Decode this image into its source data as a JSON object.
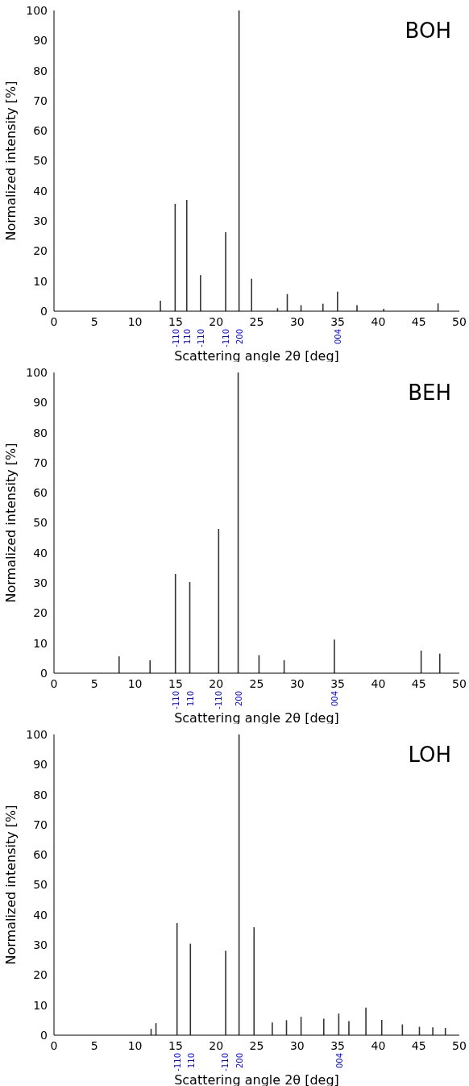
{
  "chart_data": [
    {
      "type": "bar",
      "title": "BOH",
      "xlabel": "Scattering angle 2θ [deg]",
      "ylabel": "Normalized intensity [%]",
      "x": [
        13.15,
        14.97,
        16.4,
        18.1,
        21.2,
        22.85,
        24.4,
        27.6,
        28.8,
        30.5,
        33.2,
        35.0,
        37.4,
        40.7,
        47.4
      ],
      "values": [
        3.5,
        35.7,
        37,
        12,
        26.3,
        100,
        10.8,
        1,
        5.7,
        2,
        2.5,
        6.5,
        2,
        0.8,
        2.6
      ],
      "color": "#333333",
      "xlim": [
        0,
        50
      ],
      "xticks": [
        0,
        5,
        10,
        15,
        20,
        25,
        30,
        35,
        40,
        45,
        50
      ],
      "ylim": [
        0,
        100
      ],
      "yticks": [
        0,
        10,
        20,
        30,
        40,
        50,
        60,
        70,
        80,
        90,
        100
      ],
      "annotations": [
        {
          "text": "-110",
          "x": 14.97,
          "y": 0
        },
        {
          "text": "110",
          "x": 16.4,
          "y": 0
        },
        {
          "text": "-110",
          "x": 18.1,
          "y": 0
        },
        {
          "text": "-110",
          "x": 21.2,
          "y": 0
        },
        {
          "text": "200",
          "x": 22.85,
          "y": 0
        },
        {
          "text": "004",
          "x": 35.0,
          "y": 0
        }
      ]
    },
    {
      "type": "bar",
      "title": "BEH",
      "xlabel": "Scattering angle 2θ [deg]",
      "ylabel": "Normalized intensity [%]",
      "x": [
        8.04,
        11.86,
        14.99,
        16.76,
        20.32,
        22.73,
        25.3,
        28.4,
        34.6,
        45.3,
        47.6
      ],
      "values": [
        5.6,
        4.3,
        33,
        30.3,
        48,
        100,
        6,
        4.3,
        11.2,
        7.5,
        6.5
      ],
      "color": "#333333",
      "xlim": [
        0,
        50
      ],
      "xticks": [
        0,
        5,
        10,
        15,
        20,
        25,
        30,
        35,
        40,
        45,
        50
      ],
      "ylim": [
        0,
        100
      ],
      "yticks": [
        0,
        10,
        20,
        30,
        40,
        50,
        60,
        70,
        80,
        90,
        100
      ],
      "annotations": [
        {
          "text": "-110",
          "x": 14.99,
          "y": 0
        },
        {
          "text": "110",
          "x": 16.76,
          "y": 0
        },
        {
          "text": "-110",
          "x": 20.32,
          "y": 0
        },
        {
          "text": "200",
          "x": 22.73,
          "y": 0
        },
        {
          "text": "004",
          "x": 34.6,
          "y": 0
        }
      ]
    },
    {
      "type": "bar",
      "title": "LOH",
      "xlabel": "Scattering angle 2θ [deg]",
      "ylabel": "Normalized intensity [%]",
      "x": [
        12.0,
        12.6,
        15.2,
        16.85,
        21.2,
        22.85,
        24.7,
        26.95,
        28.7,
        30.5,
        33.3,
        35.15,
        36.4,
        38.5,
        40.45,
        43.0,
        45.1,
        46.75,
        48.3
      ],
      "values": [
        2.1,
        4,
        37.3,
        30.4,
        28.1,
        100,
        35.9,
        4.2,
        5,
        6.1,
        5.5,
        7.2,
        4.7,
        9.2,
        5.1,
        3.6,
        2.8,
        2.6,
        2.4
      ],
      "color": "#333333",
      "xlim": [
        0,
        50
      ],
      "xticks": [
        0,
        5,
        10,
        15,
        20,
        25,
        30,
        35,
        40,
        45,
        50
      ],
      "ylim": [
        0,
        100
      ],
      "yticks": [
        0,
        10,
        20,
        30,
        40,
        50,
        60,
        70,
        80,
        90,
        100
      ],
      "annotations": [
        {
          "text": "-110",
          "x": 15.2,
          "y": 0
        },
        {
          "text": "110",
          "x": 16.85,
          "y": 0
        },
        {
          "text": "-110",
          "x": 21.1,
          "y": 0
        },
        {
          "text": "200",
          "x": 22.85,
          "y": 0
        },
        {
          "text": "004",
          "x": 35.15,
          "y": 0
        }
      ]
    }
  ]
}
